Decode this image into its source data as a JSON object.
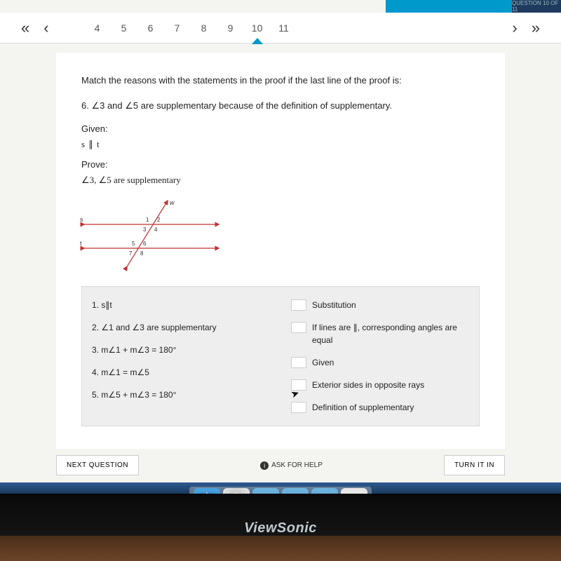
{
  "top_bar": {
    "question_label": "QUESTION 10 OF 11"
  },
  "pager": {
    "first": "«",
    "prev": "‹",
    "next": "›",
    "last": "»",
    "numbers": [
      "4",
      "5",
      "6",
      "7",
      "8",
      "9",
      "10",
      "11"
    ],
    "active_index": 6
  },
  "content": {
    "instruction": "Match the reasons with the statements in the proof if the last line of the proof is:",
    "line6": "6. ∠3 and ∠5 are supplementary because of the definition of supplementary.",
    "given_label": "Given:",
    "given_value": "s ∥ t",
    "prove_label": "Prove:",
    "prove_value": "∠3, ∠5 are supplementary"
  },
  "diagram": {
    "line_color": "#c23030",
    "label_color": "#333333",
    "labels": {
      "s": "s",
      "t": "t",
      "w": "w",
      "a1": "1",
      "a2": "2",
      "a3": "3",
      "a4": "4",
      "a5": "5",
      "a6": "6",
      "a7": "7",
      "a8": "8"
    }
  },
  "proof": {
    "statements": [
      "1.  s∥t",
      "2.  ∠1 and ∠3 are supplementary",
      "3.  m∠1 + m∠3 = 180°",
      "4.  m∠1 = m∠5",
      "5.  m∠5 + m∠3 = 180°"
    ],
    "reasons": [
      "Substitution",
      "If lines are ∥, corresponding angles are equal",
      "Given",
      "Exterior sides in opposite rays",
      "Definition of supplementary"
    ]
  },
  "bottom": {
    "next": "NEXT QUESTION",
    "ask": "ASK FOR HELP",
    "turnin": "TURN IT IN"
  },
  "brand": "ViewSonic"
}
